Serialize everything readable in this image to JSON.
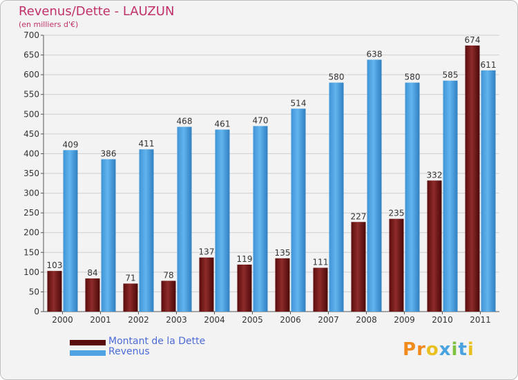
{
  "chart_data": {
    "type": "bar",
    "title": "Revenus/Dette - LAUZUN",
    "subtitle": "(en milliers d'€)",
    "xlabel": "",
    "ylabel": "",
    "ylim": [
      0,
      700
    ],
    "yticks": [
      0,
      50,
      100,
      150,
      200,
      250,
      300,
      350,
      400,
      450,
      500,
      550,
      600,
      650,
      700
    ],
    "grid": true,
    "legend_position": "bottom-left",
    "categories": [
      "2000",
      "2001",
      "2002",
      "2003",
      "2004",
      "2005",
      "2006",
      "2007",
      "2008",
      "2009",
      "2010",
      "2011"
    ],
    "series": [
      {
        "name": "Montant de la Dette",
        "color": "#7a1a1a",
        "values": [
          103,
          84,
          71,
          78,
          137,
          119,
          135,
          111,
          227,
          235,
          332,
          674
        ]
      },
      {
        "name": "Revenus",
        "color": "#4fa3e0",
        "values": [
          409,
          386,
          411,
          468,
          461,
          470,
          514,
          580,
          638,
          580,
          585,
          611
        ]
      }
    ]
  },
  "legend": {
    "debt_label": "Montant de la Dette",
    "revenue_label": "Revenus"
  },
  "logo": {
    "text": "Proxiti"
  }
}
